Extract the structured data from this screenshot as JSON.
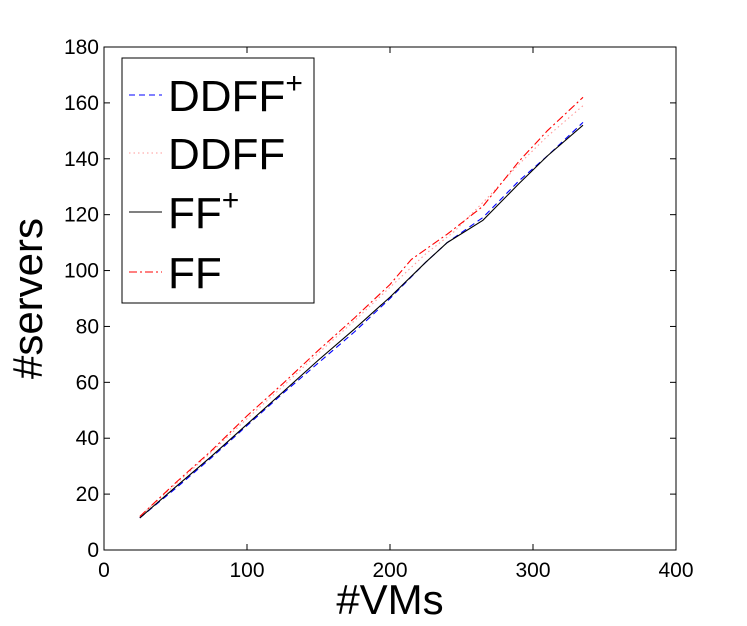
{
  "chart_data": {
    "type": "line",
    "xlabel": "#VMs",
    "ylabel": "#servers",
    "xlim": [
      0,
      400
    ],
    "ylim": [
      0,
      180
    ],
    "xticks": [
      "0",
      "100",
      "200",
      "300",
      "400"
    ],
    "yticks": [
      "0",
      "20",
      "40",
      "60",
      "80",
      "100",
      "120",
      "140",
      "160",
      "180"
    ],
    "grid": false,
    "legend_position": "top-left",
    "series": [
      {
        "name": "DDFF",
        "sup": "+",
        "color": "#0000ff",
        "dash": "dashed",
        "x": [
          25,
          50,
          75,
          100,
          125,
          150,
          175,
          200,
          225,
          240,
          265,
          290,
          310,
          335
        ],
        "y": [
          11.5,
          22,
          33,
          44.5,
          56,
          67,
          78,
          90,
          103,
          110,
          119,
          132,
          141,
          153
        ]
      },
      {
        "name": "DDFF",
        "sup": "",
        "color": "#ff9999",
        "dash": "dotted",
        "x": [
          25,
          50,
          75,
          100,
          125,
          150,
          175,
          200,
          225,
          245,
          270,
          290,
          310,
          335
        ],
        "y": [
          12,
          23.5,
          35,
          47,
          58.5,
          70.5,
          82,
          94,
          106,
          114,
          127,
          138,
          148,
          159
        ]
      },
      {
        "name": "FF",
        "sup": "+",
        "color": "#000000",
        "dash": "solid",
        "x": [
          25,
          50,
          75,
          100,
          125,
          150,
          175,
          200,
          225,
          240,
          265,
          290,
          310,
          335
        ],
        "y": [
          11.5,
          22.5,
          33.5,
          45,
          56.5,
          68,
          79,
          90.5,
          103,
          110,
          118,
          131,
          141,
          152
        ]
      },
      {
        "name": "FF",
        "sup": "",
        "color": "#ff0000",
        "dash": "dashdot",
        "x": [
          25,
          50,
          75,
          100,
          125,
          150,
          175,
          200,
          215,
          240,
          265,
          290,
          310,
          335
        ],
        "y": [
          12,
          24,
          35.5,
          48,
          59.5,
          71.5,
          83,
          95,
          104,
          113,
          123,
          139,
          150,
          162
        ]
      }
    ]
  }
}
